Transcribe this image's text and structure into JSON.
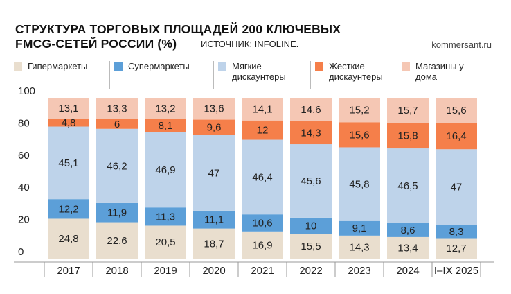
{
  "chart_data": {
    "type": "stacked_bar",
    "title": [
      "СТРУКТУРА ТОРГОВЫХ ПЛОЩАДЕЙ 200 КЛЮЧЕВЫХ",
      "FMCG-СЕТЕЙ РОССИИ (%)"
    ],
    "source": "ИСТОЧНИК: INFOLINE.",
    "brand": "kommersant.ru",
    "categories": [
      "2017",
      "2018",
      "2019",
      "2020",
      "2021",
      "2022",
      "2023",
      "2024",
      "I–IX 2025"
    ],
    "series": [
      {
        "name": "Гипермаркеты",
        "color": "#e9dece",
        "values": [
          24.8,
          22.6,
          20.5,
          18.7,
          16.9,
          15.5,
          14.3,
          13.4,
          12.7
        ],
        "value_labels": [
          "24,8",
          "22,6",
          "20,5",
          "18,7",
          "16,9",
          "15,5",
          "14,3",
          "13,4",
          "12,7"
        ]
      },
      {
        "name": "Супермаркеты",
        "color": "#5c9fd8",
        "values": [
          12.2,
          11.9,
          11.3,
          11.1,
          10.6,
          10,
          9.1,
          8.6,
          8.3
        ],
        "value_labels": [
          "12,2",
          "11,9",
          "11,3",
          "11,1",
          "10,6",
          "10",
          "9,1",
          "8,6",
          "8,3"
        ]
      },
      {
        "name": "Мягкие дискаунтеры",
        "color": "#bed3ea",
        "values": [
          45.1,
          46.2,
          46.9,
          47,
          46.4,
          45.6,
          45.8,
          46.5,
          47
        ],
        "value_labels": [
          "45,1",
          "46,2",
          "46,9",
          "47",
          "46,4",
          "45,6",
          "45,8",
          "46,5",
          "47"
        ]
      },
      {
        "name": "Жесткие дискаунтеры",
        "color": "#f57f4a",
        "values": [
          4.8,
          6,
          8.1,
          9.6,
          12,
          14.3,
          15.6,
          15.8,
          16.4
        ],
        "value_labels": [
          "4,8",
          "6",
          "8,1",
          "9,6",
          "12",
          "14,3",
          "15,6",
          "15,8",
          "16,4"
        ]
      },
      {
        "name": "Магазины у дома",
        "color": "#f5c7b4",
        "values": [
          13.1,
          13.3,
          13.2,
          13.6,
          14.1,
          14.6,
          15.2,
          15.7,
          15.6
        ],
        "value_labels": [
          "13,1",
          "13,3",
          "13,2",
          "13,6",
          "14,1",
          "14,6",
          "15,2",
          "15,7",
          "15,6"
        ]
      }
    ],
    "ylim": [
      0,
      100
    ],
    "yticks": [
      0,
      20,
      40,
      60,
      80,
      100
    ]
  }
}
